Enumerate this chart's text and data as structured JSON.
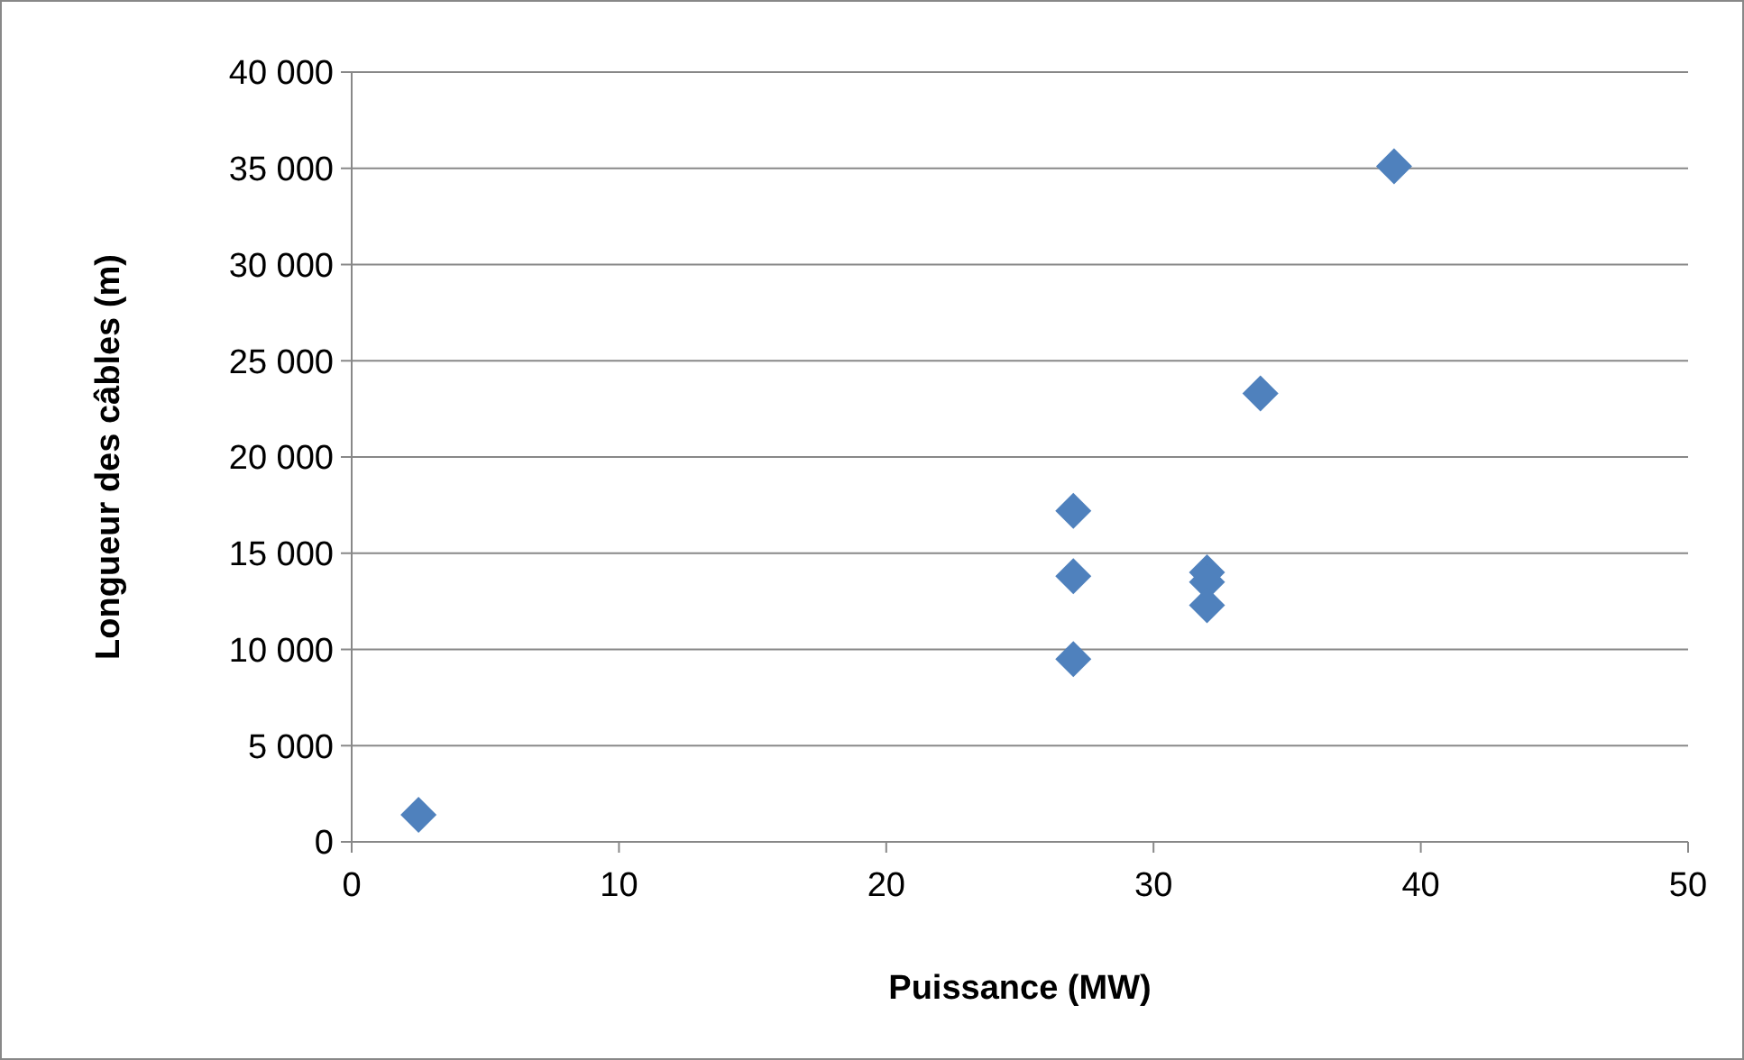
{
  "chart_data": {
    "type": "scatter",
    "xlabel": "Puissance (MW)",
    "ylabel": "Longueur des câbles (m)",
    "x": [
      2.5,
      27,
      27,
      27,
      32,
      32,
      32,
      34,
      39
    ],
    "series": [
      {
        "color": "#4f81bd",
        "values": [
          1400,
          17200,
          13800,
          9500,
          14000,
          13500,
          12300,
          23300,
          35100
        ]
      }
    ],
    "xlim": [
      0,
      50
    ],
    "xticks": [
      0,
      10,
      20,
      30,
      40,
      50
    ],
    "ylim": [
      0,
      40000
    ],
    "yticks": [
      {
        "value": 0,
        "label": "0"
      },
      {
        "value": 5000,
        "label": "5 000"
      },
      {
        "value": 10000,
        "label": "10 000"
      },
      {
        "value": 15000,
        "label": "15 000"
      },
      {
        "value": 20000,
        "label": "20 000"
      },
      {
        "value": 25000,
        "label": "25 000"
      },
      {
        "value": 30000,
        "label": "30 000"
      },
      {
        "value": 35000,
        "label": "35 000"
      },
      {
        "value": 40000,
        "label": "40 000"
      }
    ],
    "grid": "y",
    "marker": "diamond"
  }
}
